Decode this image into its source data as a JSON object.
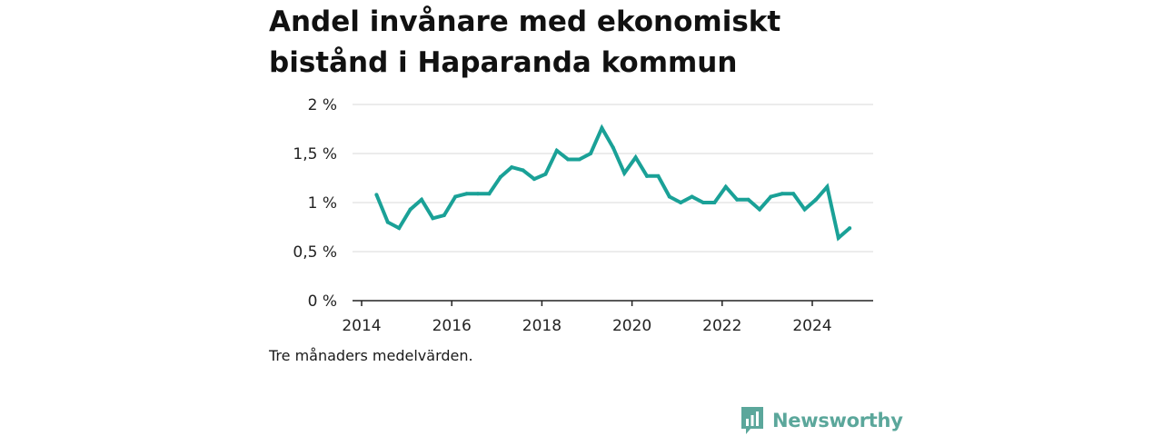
{
  "title": "Andel invånare med ekonomiskt bistånd i Haparanda kommun",
  "caption": "Tre månaders medelvärden.",
  "brand": {
    "name": "Newsworthy",
    "color": "#5ba79b"
  },
  "colors": {
    "line": "#1aa197",
    "grid": "#d9d9d9",
    "axis": "#222222"
  },
  "chart_data": {
    "type": "line",
    "title": "Andel invånare med ekonomiskt bistånd i Haparanda kommun",
    "xlabel": "",
    "ylabel": "",
    "ylim": [
      0,
      2
    ],
    "xlim": [
      2014,
      2025.25
    ],
    "y_ticks": [
      0,
      0.5,
      1,
      1.5,
      2
    ],
    "y_tick_labels": [
      "0 %",
      "0,5 %",
      "1 %",
      "1,5 %",
      "2 %"
    ],
    "x_ticks": [
      2014,
      2016,
      2018,
      2020,
      2022,
      2024
    ],
    "x_tick_labels": [
      "2014",
      "2016",
      "2018",
      "2020",
      "2022",
      "2024"
    ],
    "grid": true,
    "series": [
      {
        "x": [
          2014.33,
          2014.58,
          2014.83,
          2015.08,
          2015.33,
          2015.58,
          2015.83,
          2016.08,
          2016.33,
          2016.58,
          2016.83,
          2017.08,
          2017.33,
          2017.58,
          2017.83,
          2018.08,
          2018.33,
          2018.58,
          2018.83,
          2019.08,
          2019.33,
          2019.58,
          2019.83,
          2020.08,
          2020.33,
          2020.58,
          2020.83,
          2021.08,
          2021.33,
          2021.58,
          2021.83,
          2022.08,
          2022.33,
          2022.58,
          2022.83,
          2023.08,
          2023.33,
          2023.58,
          2023.83,
          2024.08,
          2024.33,
          2024.58,
          2024.83
        ],
        "values": [
          1.08,
          0.8,
          0.74,
          0.93,
          1.03,
          0.84,
          0.87,
          1.06,
          1.09,
          1.09,
          1.09,
          1.26,
          1.36,
          1.33,
          1.24,
          1.29,
          1.53,
          1.44,
          1.44,
          1.5,
          1.76,
          1.56,
          1.3,
          1.46,
          1.27,
          1.27,
          1.06,
          1.0,
          1.06,
          1.0,
          1.0,
          1.16,
          1.03,
          1.03,
          0.93,
          1.06,
          1.09,
          1.09,
          0.93,
          1.03,
          1.16,
          0.64,
          0.74
        ]
      }
    ]
  }
}
